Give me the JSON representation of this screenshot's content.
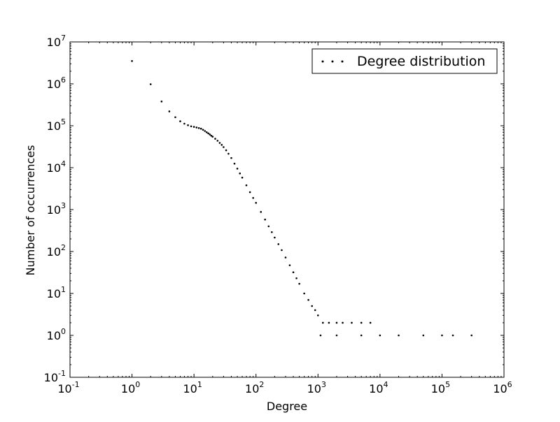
{
  "chart_data": {
    "type": "scatter",
    "title": "",
    "xlabel": "Degree",
    "ylabel": "Number of occurrences",
    "xscale": "log",
    "yscale": "log",
    "xlim": [
      0.1,
      1000000
    ],
    "ylim": [
      0.1,
      10000000
    ],
    "grid": false,
    "legend": {
      "position": "top-right",
      "entries": [
        "Degree distribution"
      ]
    },
    "x_ticks": [
      {
        "base": "10",
        "exp": "-1",
        "value": 0.1
      },
      {
        "base": "10",
        "exp": "0",
        "value": 1
      },
      {
        "base": "10",
        "exp": "1",
        "value": 10
      },
      {
        "base": "10",
        "exp": "2",
        "value": 100
      },
      {
        "base": "10",
        "exp": "3",
        "value": 1000
      },
      {
        "base": "10",
        "exp": "4",
        "value": 10000
      },
      {
        "base": "10",
        "exp": "5",
        "value": 100000
      },
      {
        "base": "10",
        "exp": "6",
        "value": 1000000
      }
    ],
    "y_ticks": [
      {
        "base": "10",
        "exp": "-1",
        "value": 0.1
      },
      {
        "base": "10",
        "exp": "0",
        "value": 1
      },
      {
        "base": "10",
        "exp": "1",
        "value": 10
      },
      {
        "base": "10",
        "exp": "2",
        "value": 100
      },
      {
        "base": "10",
        "exp": "3",
        "value": 1000
      },
      {
        "base": "10",
        "exp": "4",
        "value": 10000
      },
      {
        "base": "10",
        "exp": "5",
        "value": 100000
      },
      {
        "base": "10",
        "exp": "6",
        "value": 1000000
      },
      {
        "base": "10",
        "exp": "7",
        "value": 10000000
      }
    ],
    "series": [
      {
        "name": "Degree distribution",
        "marker": "point",
        "color": "#000000",
        "points": [
          [
            1,
            3500000
          ],
          [
            2,
            980000
          ],
          [
            3,
            380000
          ],
          [
            4,
            220000
          ],
          [
            5,
            160000
          ],
          [
            6,
            128000
          ],
          [
            7,
            112000
          ],
          [
            8,
            103000
          ],
          [
            9,
            97000
          ],
          [
            10,
            94000
          ],
          [
            11,
            91000
          ],
          [
            12,
            88000
          ],
          [
            13,
            85000
          ],
          [
            14,
            80000
          ],
          [
            15,
            75000
          ],
          [
            16,
            70000
          ],
          [
            17,
            66000
          ],
          [
            18,
            62000
          ],
          [
            19,
            58000
          ],
          [
            20,
            55000
          ],
          [
            22,
            49000
          ],
          [
            24,
            44000
          ],
          [
            26,
            39000
          ],
          [
            28,
            35000
          ],
          [
            30,
            31000
          ],
          [
            33,
            26000
          ],
          [
            36,
            21500
          ],
          [
            40,
            17000
          ],
          [
            45,
            12500
          ],
          [
            50,
            9500
          ],
          [
            55,
            7300
          ],
          [
            60,
            5800
          ],
          [
            70,
            3800
          ],
          [
            80,
            2600
          ],
          [
            90,
            1900
          ],
          [
            100,
            1450
          ],
          [
            120,
            880
          ],
          [
            140,
            580
          ],
          [
            160,
            400
          ],
          [
            180,
            290
          ],
          [
            200,
            215
          ],
          [
            230,
            150
          ],
          [
            260,
            108
          ],
          [
            300,
            72
          ],
          [
            350,
            47
          ],
          [
            400,
            32
          ],
          [
            450,
            23
          ],
          [
            500,
            17
          ],
          [
            600,
            10
          ],
          [
            700,
            7
          ],
          [
            800,
            5
          ],
          [
            900,
            4
          ],
          [
            1000,
            3
          ],
          [
            1200,
            2
          ],
          [
            1500,
            2
          ],
          [
            2000,
            2
          ],
          [
            2500,
            2
          ],
          [
            3500,
            2
          ],
          [
            5000,
            2
          ],
          [
            7000,
            2
          ],
          [
            1100,
            1
          ],
          [
            2000,
            1
          ],
          [
            5000,
            1
          ],
          [
            10000,
            1
          ],
          [
            20000,
            1
          ],
          [
            50000,
            1
          ],
          [
            100000,
            1
          ],
          [
            150000,
            1
          ],
          [
            300000,
            1
          ]
        ]
      }
    ]
  }
}
